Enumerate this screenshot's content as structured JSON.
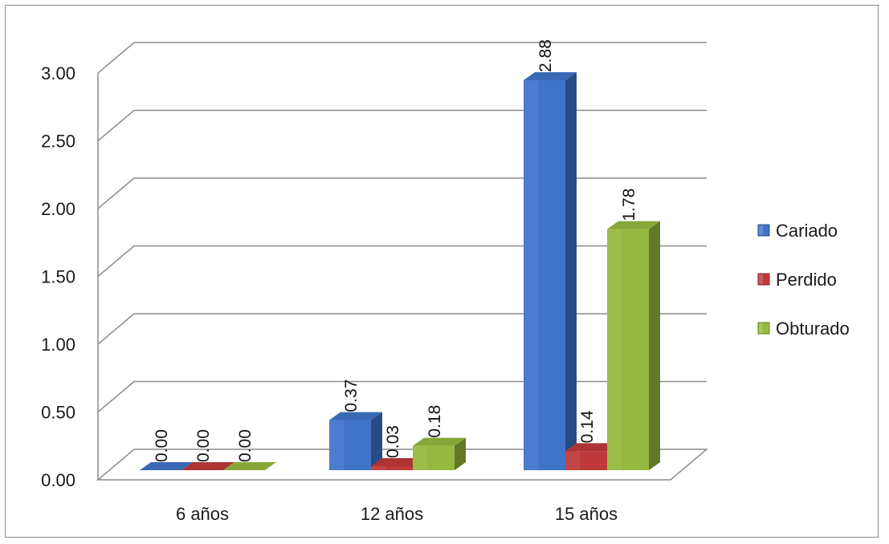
{
  "chart_data": {
    "type": "bar",
    "categories": [
      "6 años",
      "12 años",
      "15 años"
    ],
    "series": [
      {
        "name": "Cariado",
        "values": [
          0.0,
          0.37,
          2.88
        ],
        "labels": [
          "0.00",
          "0.37",
          "2.88"
        ],
        "color": "#3f74c9"
      },
      {
        "name": "Perdido",
        "values": [
          0.0,
          0.03,
          0.14
        ],
        "labels": [
          "0.00",
          "0.03",
          "0.14"
        ],
        "color": "#c0393a"
      },
      {
        "name": "Obturado",
        "values": [
          0.0,
          0.18,
          1.78
        ],
        "labels": [
          "0.00",
          "0.18",
          "1.78"
        ],
        "color": "#95b93e"
      }
    ],
    "ylim": [
      0,
      3
    ],
    "yticks": [
      "0.00",
      "0.50",
      "1.00",
      "1.50",
      "2.00",
      "2.50",
      "3.00"
    ],
    "grid": true,
    "legend": "right",
    "style": "3d-clustered-column"
  }
}
